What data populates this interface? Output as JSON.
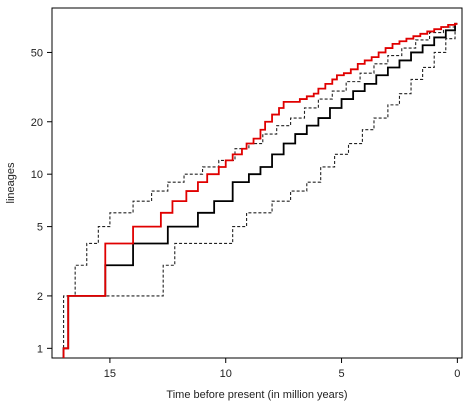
{
  "chart_data": {
    "type": "line",
    "title": "",
    "xlabel": "Time before present (in million years)",
    "ylabel": "lineages",
    "x_reversed": true,
    "y_scale": "log",
    "xlim": [
      17.5,
      -0.2
    ],
    "ylim": [
      0.88,
      90
    ],
    "x_ticks": [
      15,
      10,
      5,
      0
    ],
    "y_ticks": [
      1,
      2,
      5,
      10,
      20,
      50
    ],
    "grid": false,
    "legend": "none",
    "colors": {
      "observed": "#e00000",
      "mean": "#000000",
      "envelope": "#222222"
    },
    "series": [
      {
        "style": "red solid step",
        "x": [
          17.0,
          16.8,
          15.2,
          14.0,
          12.8,
          12.3,
          11.7,
          11.2,
          10.8,
          10.3,
          10.0,
          9.7,
          9.3,
          9.1,
          8.8,
          8.5,
          8.3,
          8.0,
          7.7,
          7.5,
          7.2,
          6.8,
          6.5,
          6.2,
          6.0,
          5.7,
          5.4,
          5.2,
          4.9,
          4.6,
          4.3,
          4.0,
          3.7,
          3.4,
          3.1,
          2.8,
          2.5,
          2.2,
          1.9,
          1.6,
          1.3,
          1.0,
          0.7,
          0.4,
          0.1
        ],
        "y": [
          1,
          2,
          4,
          5,
          6,
          7,
          8,
          9,
          10,
          11,
          12,
          13,
          14,
          15,
          16,
          18,
          20,
          22,
          24,
          26,
          26,
          27,
          28,
          29,
          31,
          33,
          35,
          37,
          38,
          40,
          43,
          45,
          47,
          50,
          53,
          56,
          58,
          60,
          62,
          64,
          66,
          68,
          70,
          72,
          73
        ]
      },
      {
        "style": "black solid step",
        "x": [
          17.0,
          16.8,
          15.2,
          14.0,
          12.5,
          11.2,
          10.5,
          9.7,
          9.0,
          8.5,
          8.0,
          7.5,
          7.0,
          6.5,
          6.0,
          5.5,
          5.0,
          4.5,
          4.0,
          3.5,
          3.0,
          2.5,
          2.0,
          1.5,
          1.0,
          0.5,
          0.1
        ],
        "y": [
          1,
          2,
          3,
          4,
          5,
          6,
          7,
          9,
          10,
          11,
          13,
          15,
          17,
          19,
          21,
          24,
          27,
          30,
          33,
          37,
          41,
          45,
          50,
          55,
          61,
          67,
          73
        ]
      },
      {
        "style": "black dotted step (upper envelope)",
        "x": [
          17.0,
          16.5,
          16.0,
          15.5,
          15.0,
          14.0,
          13.2,
          12.5,
          11.8,
          11.0,
          10.3,
          9.6,
          9.0,
          8.4,
          7.8,
          7.2,
          6.6,
          6.0,
          5.4,
          4.8,
          4.2,
          3.6,
          3.0,
          2.4,
          1.8,
          1.2,
          0.6,
          0.1
        ],
        "y": [
          2,
          3,
          4,
          5,
          6,
          7,
          8,
          9,
          10,
          11,
          12,
          14,
          15,
          17,
          19,
          21,
          24,
          27,
          30,
          34,
          38,
          43,
          48,
          53,
          59,
          65,
          70,
          73
        ]
      },
      {
        "style": "black dotted step (lower envelope)",
        "x": [
          17.0,
          16.8,
          12.7,
          12.2,
          11.0,
          9.7,
          9.1,
          8.0,
          7.2,
          6.5,
          5.9,
          5.3,
          4.7,
          4.1,
          3.6,
          3.0,
          2.5,
          2.0,
          1.5,
          1.0,
          0.5,
          0.1
        ],
        "y": [
          1,
          2,
          3,
          4,
          4,
          5,
          6,
          7,
          8,
          9,
          11,
          13,
          15,
          18,
          21,
          25,
          29,
          35,
          41,
          50,
          60,
          73
        ]
      }
    ]
  }
}
